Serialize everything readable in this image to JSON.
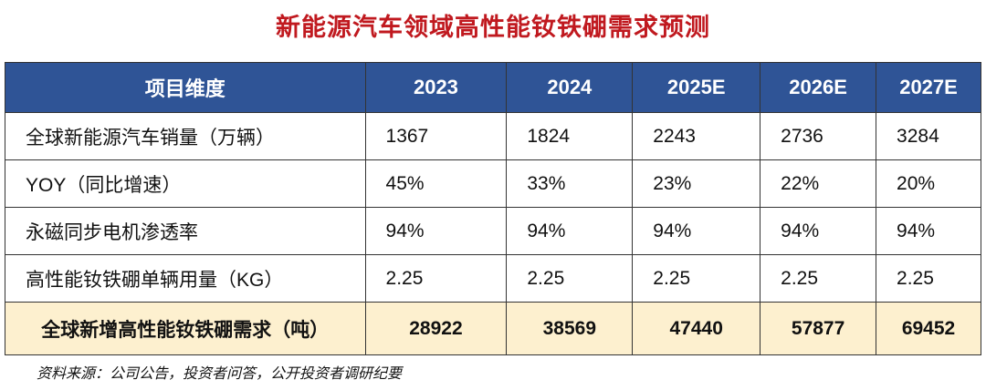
{
  "title": "新能源汽车领域高性能钕铁硼需求预测",
  "table": {
    "header": [
      "项目维度",
      "2023",
      "2024",
      "2025E",
      "2026E",
      "2027E"
    ],
    "rows": [
      [
        "全球新能源汽车销量（万辆）",
        "1367",
        "1824",
        "2243",
        "2736",
        "3284"
      ],
      [
        "YOY（同比增速）",
        "45%",
        "33%",
        "23%",
        "22%",
        "20%"
      ],
      [
        "永磁同步电机渗透率",
        "94%",
        "94%",
        "94%",
        "94%",
        "94%"
      ],
      [
        "高性能钕铁硼单辆用量（KG）",
        "2.25",
        "2.25",
        "2.25",
        "2.25",
        "2.25"
      ],
      [
        "全球新增高性能钕铁硼需求（吨）",
        "28922",
        "38569",
        "47440",
        "57877",
        "69452"
      ]
    ]
  },
  "source": "资料来源：公司公告，投资者问答，公开投资者调研纪要"
}
